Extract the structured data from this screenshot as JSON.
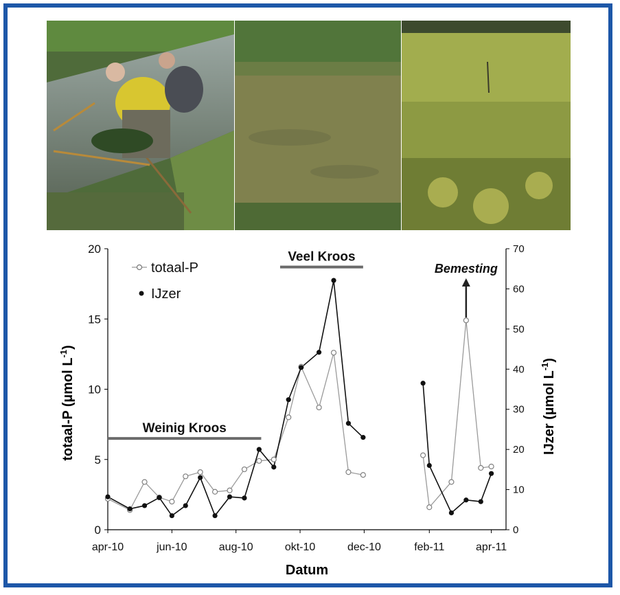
{
  "photos": [
    {
      "name": "sampling-photo"
    },
    {
      "name": "duckweed-covered-ditch-photo"
    },
    {
      "name": "dense-duckweed-photo"
    }
  ],
  "chart_data": {
    "type": "line",
    "xlabel": "Datum",
    "ylabel_left": "totaal-P (µmol L",
    "ylabel_left_sup": "-1",
    "ylabel_right": "IJzer (µmol L",
    "ylabel_right_sup": "-1",
    "ylim_left": [
      0,
      20
    ],
    "ylim_right": [
      0,
      70
    ],
    "yticks_left": [
      "0",
      "5",
      "10",
      "15",
      "20"
    ],
    "yticks_right": [
      "0",
      "10",
      "20",
      "30",
      "40",
      "50",
      "60",
      "70"
    ],
    "x_range": [
      "2010-04-01",
      "2011-04-15"
    ],
    "xticks": [
      {
        "date": "2010-04-01",
        "label": "apr-10"
      },
      {
        "date": "2010-06-01",
        "label": "jun-10"
      },
      {
        "date": "2010-08-01",
        "label": "aug-10"
      },
      {
        "date": "2010-10-01",
        "label": "okt-10"
      },
      {
        "date": "2010-12-01",
        "label": "dec-10"
      },
      {
        "date": "2011-02-01",
        "label": "feb-11"
      },
      {
        "date": "2011-04-01",
        "label": "apr-11"
      }
    ],
    "legend_position": "top-left",
    "series": [
      {
        "name": "totaal-P",
        "axis": "left",
        "marker": "open-circle",
        "segments": [
          {
            "points": [
              [
                "2010-04-01",
                2.2
              ],
              [
                "2010-04-22",
                1.4
              ],
              [
                "2010-05-06",
                3.4
              ],
              [
                "2010-05-20",
                2.3
              ],
              [
                "2010-06-01",
                2.0
              ],
              [
                "2010-06-14",
                3.8
              ],
              [
                "2010-06-28",
                4.1
              ],
              [
                "2010-07-12",
                2.7
              ],
              [
                "2010-07-26",
                2.8
              ],
              [
                "2010-08-09",
                4.3
              ],
              [
                "2010-08-23",
                4.9
              ],
              [
                "2010-09-06",
                5.0
              ],
              [
                "2010-09-20",
                8.0
              ],
              [
                "2010-10-02",
                11.6
              ],
              [
                "2010-10-19",
                8.7
              ],
              [
                "2010-11-02",
                12.6
              ],
              [
                "2010-11-16",
                4.1
              ],
              [
                "2010-11-30",
                3.9
              ]
            ]
          },
          {
            "points": [
              [
                "2011-01-26",
                5.3
              ],
              [
                "2011-02-01",
                1.6
              ],
              [
                "2011-02-22",
                3.4
              ],
              [
                "2011-03-08",
                14.9
              ],
              [
                "2011-03-22",
                4.4
              ],
              [
                "2011-04-01",
                4.5
              ]
            ]
          }
        ]
      },
      {
        "name": "IJzer",
        "axis": "right",
        "marker": "filled-circle",
        "segments": [
          {
            "points": [
              [
                "2010-04-01",
                8.2
              ],
              [
                "2010-04-22",
                5.2
              ],
              [
                "2010-05-06",
                6.0
              ],
              [
                "2010-05-20",
                8.0
              ],
              [
                "2010-06-01",
                3.5
              ],
              [
                "2010-06-14",
                6.0
              ],
              [
                "2010-06-28",
                13.0
              ],
              [
                "2010-07-12",
                3.5
              ],
              [
                "2010-07-26",
                8.2
              ],
              [
                "2010-08-09",
                7.9
              ],
              [
                "2010-08-23",
                20.0
              ],
              [
                "2010-09-06",
                15.6
              ],
              [
                "2010-09-20",
                32.4
              ],
              [
                "2010-10-02",
                40.4
              ],
              [
                "2010-10-19",
                44.2
              ],
              [
                "2010-11-02",
                62.1
              ],
              [
                "2010-11-16",
                26.5
              ],
              [
                "2010-11-30",
                23.0
              ]
            ]
          },
          {
            "points": [
              [
                "2011-01-26",
                36.5
              ],
              [
                "2011-02-01",
                16.0
              ],
              [
                "2011-02-22",
                4.2
              ],
              [
                "2011-03-08",
                7.4
              ],
              [
                "2011-03-22",
                7.0
              ],
              [
                "2011-04-01",
                14.0
              ]
            ]
          }
        ]
      }
    ],
    "annotations": [
      {
        "text": "Weinig Kroos",
        "type": "bar",
        "start": "2010-04-01",
        "end": "2010-08-25",
        "axis": "left",
        "y": 6.5
      },
      {
        "text": "Veel Kroos",
        "type": "bar",
        "start": "2010-09-12",
        "end": "2010-11-30",
        "axis": "left",
        "y": 18.7
      },
      {
        "text": "Bemesting",
        "type": "arrow",
        "date": "2011-03-08",
        "axis": "left",
        "y_from": 15.1,
        "y_to": 17.8
      }
    ]
  }
}
